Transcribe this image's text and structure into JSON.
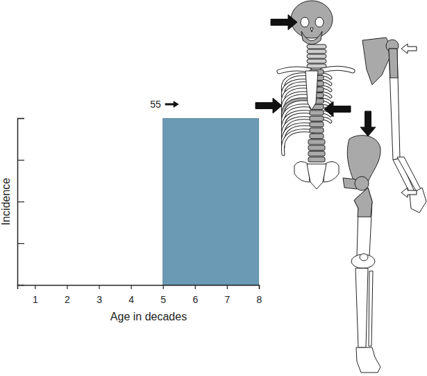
{
  "chart_data": {
    "type": "histogram",
    "x_label": "Age in decades",
    "y_label": "Incidence",
    "bins": [
      5,
      8
    ],
    "counts": [
      4
    ],
    "color": "#6b9ab4",
    "xlim": [
      0.45,
      8
    ],
    "xticks": [
      1,
      2,
      3,
      4,
      5,
      6,
      7,
      8
    ],
    "ylim": [
      0,
      4
    ],
    "yticks": [
      1,
      2,
      3,
      4
    ],
    "tick_labels": "x",
    "grid": false,
    "annotations": [
      {
        "text": "55",
        "x": 5.5
      }
    ]
  }
}
